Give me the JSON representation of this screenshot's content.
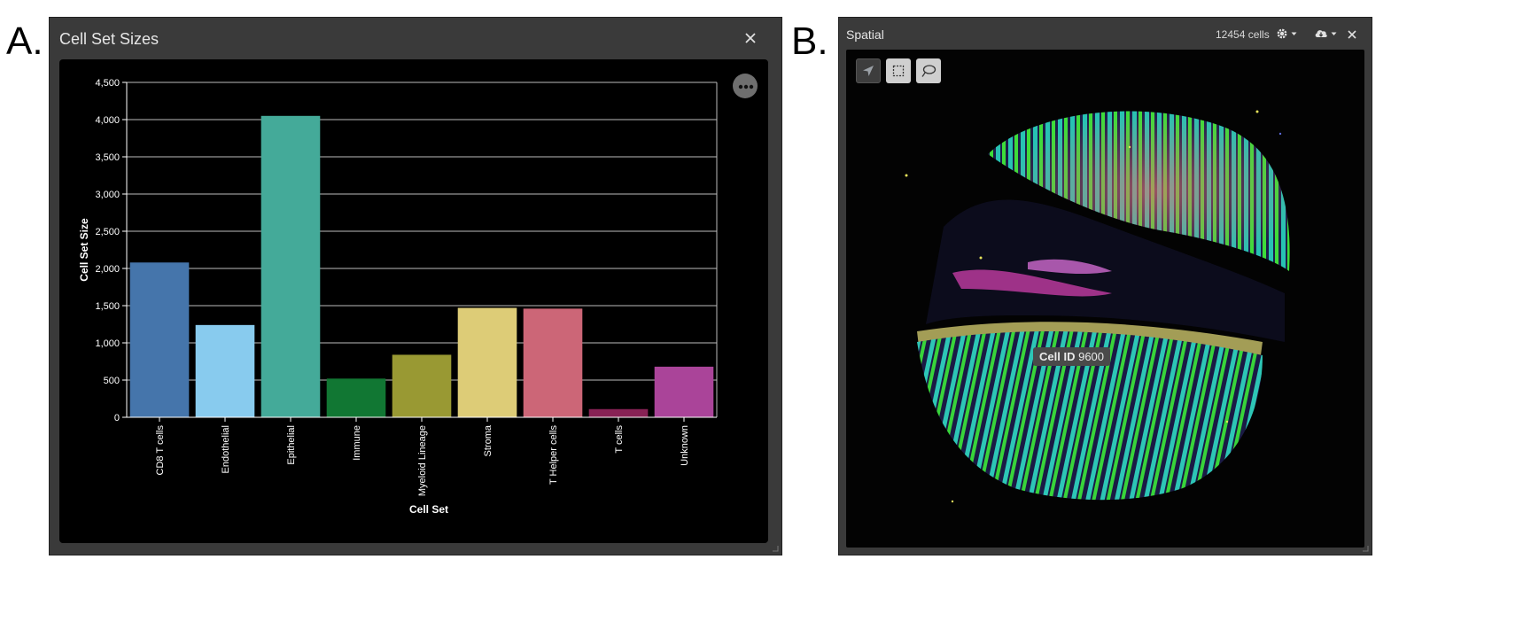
{
  "panel_a": {
    "letter": "A.",
    "title": "Cell Set Sizes",
    "menu_button": "•••"
  },
  "panel_b": {
    "letter": "B.",
    "title": "Spatial",
    "cell_count": "12454 cells",
    "tooltip_label": "Cell ID",
    "tooltip_value": "9600"
  },
  "chart_data": {
    "type": "bar",
    "xlabel": "Cell Set",
    "ylabel": "Cell Set Size",
    "ylim": [
      0,
      4500
    ],
    "yticks": [
      0,
      500,
      1000,
      1500,
      2000,
      2500,
      3000,
      3500,
      4000,
      4500
    ],
    "ytick_labels": [
      "0",
      "500",
      "1,000",
      "1,500",
      "2,000",
      "2,500",
      "3,000",
      "3,500",
      "4,000",
      "4,500"
    ],
    "grid": true,
    "categories": [
      "CD8 T cells",
      "Endothelial",
      "Epithelial",
      "Immune",
      "Myeloid Lineage",
      "Stroma",
      "T Helper cells",
      "T cells",
      "Unknown"
    ],
    "values": [
      2080,
      1240,
      4050,
      520,
      840,
      1470,
      1460,
      110,
      680
    ],
    "colors": [
      "#4575ab",
      "#88cbee",
      "#44aa99",
      "#117733",
      "#999933",
      "#ddcc77",
      "#cc6677",
      "#882255",
      "#aa4499"
    ]
  }
}
